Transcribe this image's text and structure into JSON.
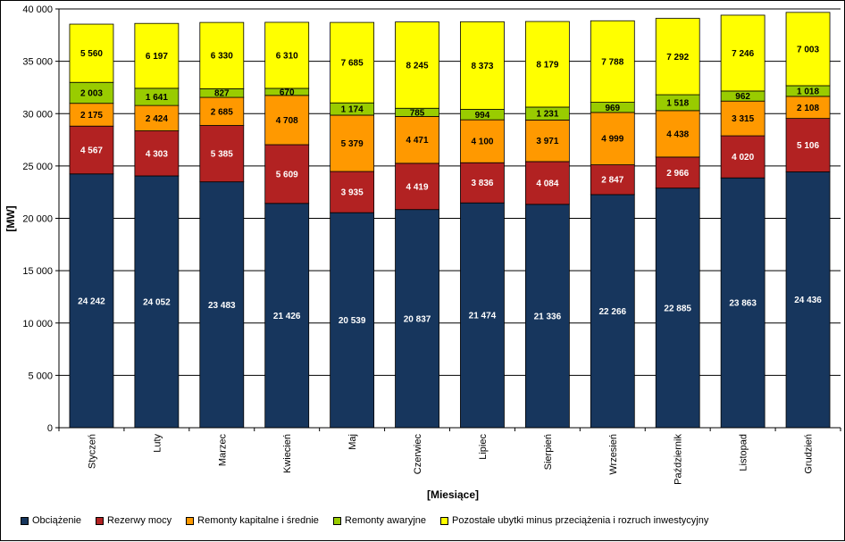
{
  "chart_data": {
    "type": "bar",
    "stacked": true,
    "xlabel": "[Miesiące]",
    "ylabel": "[MW]",
    "ylim": [
      0,
      40000
    ],
    "ytick_step": 5000,
    "y_tick_labels": [
      "0",
      "5 000",
      "10 000",
      "15 000",
      "20 000",
      "25 000",
      "30 000",
      "35 000",
      "40 000"
    ],
    "grid": true,
    "legend_position": "bottom",
    "categories": [
      "Styczeń",
      "Luty",
      "Marzec",
      "Kwiecień",
      "Maj",
      "Czerwiec",
      "Lipiec",
      "Sierpień",
      "Wrzesień",
      "Październik",
      "Listopad",
      "Grudzień"
    ],
    "series": [
      {
        "name": "Obciążenie",
        "color": "#17365d",
        "label_color": "#ffffff",
        "values": [
          24242,
          24052,
          23483,
          21426,
          20539,
          20837,
          21474,
          21336,
          22266,
          22885,
          23863,
          24436
        ],
        "labels": [
          "24 242",
          "24 052",
          "23 483",
          "21 426",
          "20 539",
          "20 837",
          "21 474",
          "21 336",
          "22 266",
          "22 885",
          "23 863",
          "24 436"
        ]
      },
      {
        "name": "Rezerwy mocy",
        "color": "#b22222",
        "label_color": "#ffffff",
        "values": [
          4567,
          4303,
          5385,
          5609,
          3935,
          4419,
          3836,
          4084,
          2847,
          2966,
          4020,
          5106
        ],
        "labels": [
          "4 567",
          "4 303",
          "5 385",
          "5 609",
          "3 935",
          "4 419",
          "3 836",
          "4 084",
          "2 847",
          "2 966",
          "4 020",
          "5 106"
        ]
      },
      {
        "name": "Remonty kapitalne i średnie",
        "color": "#ff9900",
        "label_color": "#000000",
        "values": [
          2175,
          2424,
          2685,
          4708,
          5379,
          4471,
          4100,
          3971,
          4999,
          4438,
          3315,
          2108
        ],
        "labels": [
          "2 175",
          "2 424",
          "2 685",
          "4 708",
          "5 379",
          "4 471",
          "4 100",
          "3 971",
          "4 999",
          "4 438",
          "3 315",
          "2 108"
        ]
      },
      {
        "name": "Remonty awaryjne",
        "color": "#99cc00",
        "label_color": "#000000",
        "values": [
          2003,
          1641,
          827,
          670,
          1174,
          785,
          994,
          1231,
          969,
          1518,
          962,
          1018
        ],
        "labels": [
          "2 003",
          "1 641",
          "827",
          "670",
          "1 174",
          "785",
          "994",
          "1 231",
          "969",
          "1 518",
          "962",
          "1 018"
        ]
      },
      {
        "name": "Pozostałe ubytki minus przeciążenia i rozruch inwestycyjny",
        "color": "#ffff00",
        "label_color": "#000000",
        "values": [
          5560,
          6197,
          6330,
          6310,
          7685,
          8245,
          8373,
          8179,
          7788,
          7292,
          7246,
          7003
        ],
        "labels": [
          "5 560",
          "6 197",
          "6 330",
          "6 310",
          "7 685",
          "8 245",
          "8 373",
          "8 179",
          "7 788",
          "7 292",
          "7 246",
          "7 003"
        ]
      }
    ]
  }
}
